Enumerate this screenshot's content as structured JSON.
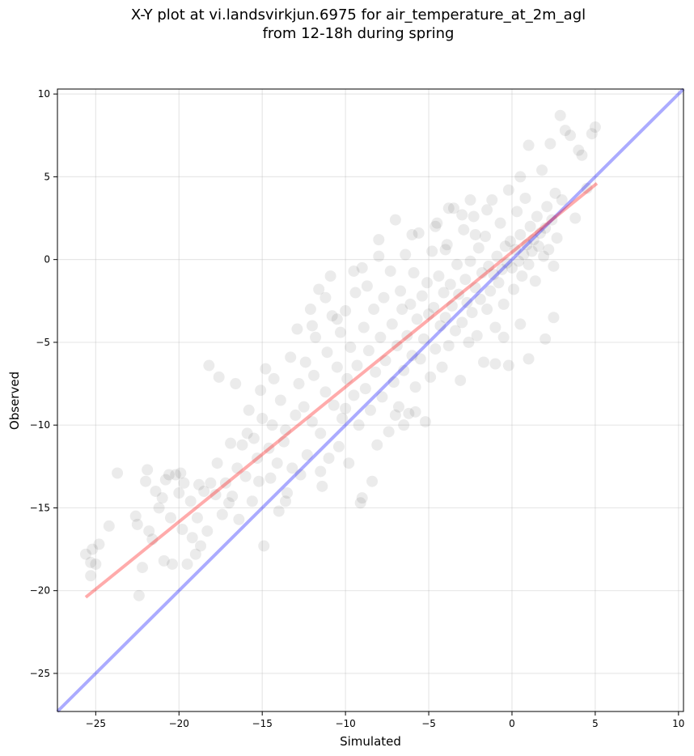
{
  "chart_data": {
    "type": "scatter",
    "title_line1": "X-Y plot at vi.landsvirkjun.6975 for air_temperature_at_2m_agl",
    "title_line2": "from 12-18h during spring",
    "xlabel": "Simulated",
    "ylabel": "Observed",
    "xlim": [
      -27.3,
      10.3
    ],
    "ylim": [
      -27.3,
      10.3
    ],
    "xticks": [
      -25,
      -20,
      -15,
      -10,
      -5,
      0,
      5,
      10
    ],
    "yticks": [
      -25,
      -20,
      -15,
      -10,
      -5,
      0,
      5,
      10
    ],
    "grid": true,
    "point_color": "#000000",
    "point_alpha": 0.08,
    "identity_line": {
      "color": "#0000ff",
      "alpha": 0.33,
      "x": [
        -27.3,
        10.3
      ],
      "y": [
        -27.3,
        10.3
      ]
    },
    "fit_line": {
      "color": "#ff0000",
      "alpha": 0.33,
      "x": [
        -25.6,
        5.1
      ],
      "y": [
        -20.4,
        4.6
      ]
    },
    "points": [
      [
        -25.6,
        -17.8
      ],
      [
        -25.3,
        -18.3
      ],
      [
        -25.2,
        -17.5
      ],
      [
        -25.0,
        -18.4
      ],
      [
        -24.8,
        -17.2
      ],
      [
        -25.3,
        -19.1
      ],
      [
        -24.2,
        -16.1
      ],
      [
        -23.7,
        -12.9
      ],
      [
        -22.6,
        -15.5
      ],
      [
        -22.4,
        -20.3
      ],
      [
        -22.5,
        -16.0
      ],
      [
        -22.2,
        -18.6
      ],
      [
        -22.0,
        -13.4
      ],
      [
        -21.9,
        -12.7
      ],
      [
        -21.8,
        -16.4
      ],
      [
        -21.6,
        -16.9
      ],
      [
        -21.4,
        -14.0
      ],
      [
        -21.2,
        -15.0
      ],
      [
        -21.0,
        -14.4
      ],
      [
        -20.9,
        -18.2
      ],
      [
        -20.8,
        -13.3
      ],
      [
        -20.6,
        -13.0
      ],
      [
        -20.5,
        -15.6
      ],
      [
        -20.4,
        -18.4
      ],
      [
        -20.2,
        -13.0
      ],
      [
        -20.0,
        -14.1
      ],
      [
        -19.9,
        -12.9
      ],
      [
        -19.8,
        -16.3
      ],
      [
        -19.7,
        -13.5
      ],
      [
        -19.5,
        -18.4
      ],
      [
        -19.3,
        -14.6
      ],
      [
        -19.2,
        -16.8
      ],
      [
        -19.0,
        -17.8
      ],
      [
        -18.9,
        -15.6
      ],
      [
        -18.8,
        -13.6
      ],
      [
        -18.7,
        -17.3
      ],
      [
        -18.5,
        -14.0
      ],
      [
        -18.3,
        -16.4
      ],
      [
        -18.1,
        -13.5
      ],
      [
        -18.2,
        -6.4
      ],
      [
        -17.8,
        -14.2
      ],
      [
        -17.7,
        -12.3
      ],
      [
        -17.6,
        -7.1
      ],
      [
        -17.4,
        -15.4
      ],
      [
        -17.2,
        -13.5
      ],
      [
        -17.0,
        -14.7
      ],
      [
        -16.9,
        -11.1
      ],
      [
        -16.8,
        -14.3
      ],
      [
        -16.6,
        -7.5
      ],
      [
        -16.5,
        -12.6
      ],
      [
        -16.4,
        -15.7
      ],
      [
        -16.2,
        -11.2
      ],
      [
        -16.0,
        -13.1
      ],
      [
        -15.9,
        -10.5
      ],
      [
        -15.8,
        -9.1
      ],
      [
        -15.6,
        -14.6
      ],
      [
        -15.5,
        -10.8
      ],
      [
        -15.3,
        -12.0
      ],
      [
        -15.2,
        -13.4
      ],
      [
        -15.1,
        -7.9
      ],
      [
        -15.0,
        -9.6
      ],
      [
        -14.9,
        -17.3
      ],
      [
        -14.8,
        -6.6
      ],
      [
        -14.6,
        -11.4
      ],
      [
        -14.5,
        -13.2
      ],
      [
        -14.4,
        -10.0
      ],
      [
        -14.3,
        -7.2
      ],
      [
        -14.1,
        -12.3
      ],
      [
        -14.0,
        -15.2
      ],
      [
        -13.9,
        -8.5
      ],
      [
        -13.7,
        -11.0
      ],
      [
        -13.6,
        -10.3
      ],
      [
        -13.5,
        -14.1
      ],
      [
        -13.3,
        -5.9
      ],
      [
        -13.2,
        -12.6
      ],
      [
        -13.0,
        -9.4
      ],
      [
        -12.9,
        -4.2
      ],
      [
        -12.8,
        -7.5
      ],
      [
        -12.7,
        -13.0
      ],
      [
        -12.5,
        -8.9
      ],
      [
        -12.4,
        -6.2
      ],
      [
        -12.3,
        -11.8
      ],
      [
        -12.1,
        -3.0
      ],
      [
        -12.0,
        -9.8
      ],
      [
        -11.9,
        -7.0
      ],
      [
        -11.8,
        -4.7
      ],
      [
        -11.6,
        -1.8
      ],
      [
        -11.5,
        -10.5
      ],
      [
        -11.4,
        -13.7
      ],
      [
        -11.2,
        -8.0
      ],
      [
        -11.1,
        -5.6
      ],
      [
        -11.0,
        -12.0
      ],
      [
        -10.9,
        -1.0
      ],
      [
        -10.8,
        -3.4
      ],
      [
        -10.7,
        -8.8
      ],
      [
        -10.5,
        -6.5
      ],
      [
        -10.4,
        -11.3
      ],
      [
        -10.3,
        -4.4
      ],
      [
        -10.2,
        -9.6
      ],
      [
        -10.0,
        -3.1
      ],
      [
        -9.9,
        -7.2
      ],
      [
        -9.8,
        -12.3
      ],
      [
        -9.7,
        -5.3
      ],
      [
        -9.5,
        -8.2
      ],
      [
        -9.4,
        -2.0
      ],
      [
        -9.3,
        -6.4
      ],
      [
        -9.2,
        -10.0
      ],
      [
        -9.0,
        -14.4
      ],
      [
        -9.0,
        -0.5
      ],
      [
        -8.9,
        -4.1
      ],
      [
        -8.8,
        -7.8
      ],
      [
        -8.7,
        -1.6
      ],
      [
        -8.6,
        -5.5
      ],
      [
        -8.5,
        -9.1
      ],
      [
        -8.3,
        -3.0
      ],
      [
        -8.2,
        -6.8
      ],
      [
        -8.1,
        -11.2
      ],
      [
        -8.0,
        1.2
      ],
      [
        -7.9,
        -4.7
      ],
      [
        -7.8,
        -8.3
      ],
      [
        -7.7,
        -2.3
      ],
      [
        -7.6,
        -6.1
      ],
      [
        -7.4,
        -10.4
      ],
      [
        -7.3,
        -0.7
      ],
      [
        -7.2,
        -3.9
      ],
      [
        -7.1,
        -7.4
      ],
      [
        -7.0,
        2.4
      ],
      [
        -6.9,
        -5.2
      ],
      [
        -6.8,
        -8.9
      ],
      [
        -6.7,
        -1.9
      ],
      [
        -6.6,
        -3.0
      ],
      [
        -6.5,
        -6.7
      ],
      [
        -6.4,
        0.3
      ],
      [
        -6.3,
        -4.6
      ],
      [
        -6.2,
        -9.3
      ],
      [
        -6.1,
        -2.7
      ],
      [
        -6.0,
        -5.8
      ],
      [
        -5.9,
        -0.8
      ],
      [
        -5.8,
        -7.7
      ],
      [
        -5.7,
        -3.6
      ],
      [
        -5.6,
        1.6
      ],
      [
        -5.5,
        -6.0
      ],
      [
        -5.4,
        -2.2
      ],
      [
        -5.3,
        -4.8
      ],
      [
        -5.2,
        -9.8
      ],
      [
        -5.1,
        -1.4
      ],
      [
        -5.0,
        -3.3
      ],
      [
        -4.9,
        -7.1
      ],
      [
        -4.8,
        0.5
      ],
      [
        -4.7,
        -2.9
      ],
      [
        -4.6,
        -5.4
      ],
      [
        -4.5,
        2.2
      ],
      [
        -4.4,
        -1.0
      ],
      [
        -4.3,
        -4.0
      ],
      [
        -4.2,
        -6.5
      ],
      [
        -4.1,
        -2.0
      ],
      [
        -4.0,
        -3.5
      ],
      [
        -3.9,
        0.9
      ],
      [
        -3.8,
        -5.2
      ],
      [
        -3.7,
        -1.5
      ],
      [
        -3.6,
        -2.8
      ],
      [
        -3.5,
        3.1
      ],
      [
        -3.4,
        -4.3
      ],
      [
        -3.3,
        -0.3
      ],
      [
        -3.2,
        -2.1
      ],
      [
        -3.1,
        -7.3
      ],
      [
        -3.0,
        -3.8
      ],
      [
        -2.9,
        1.8
      ],
      [
        -2.8,
        -1.2
      ],
      [
        -2.7,
        -2.6
      ],
      [
        -2.6,
        -5.0
      ],
      [
        -2.5,
        -0.1
      ],
      [
        -2.4,
        -3.2
      ],
      [
        -2.3,
        2.6
      ],
      [
        -2.2,
        -1.7
      ],
      [
        -2.1,
        -4.6
      ],
      [
        -2.0,
        0.7
      ],
      [
        -1.9,
        -2.4
      ],
      [
        -1.8,
        -0.8
      ],
      [
        -1.7,
        -6.2
      ],
      [
        -1.6,
        1.4
      ],
      [
        -1.5,
        -3.0
      ],
      [
        -1.4,
        -0.4
      ],
      [
        -1.3,
        -1.9
      ],
      [
        -1.2,
        3.6
      ],
      [
        -1.1,
        -0.9
      ],
      [
        -1.0,
        -4.1
      ],
      [
        -0.9,
        0.2
      ],
      [
        -0.8,
        -1.4
      ],
      [
        -0.7,
        2.2
      ],
      [
        -0.6,
        -0.6
      ],
      [
        -0.5,
        -2.7
      ],
      [
        -0.4,
        0.8
      ],
      [
        -0.3,
        -0.2
      ],
      [
        -0.2,
        -6.4
      ],
      [
        -0.1,
        1.1
      ],
      [
        0.0,
        -0.5
      ],
      [
        0.1,
        -1.8
      ],
      [
        0.2,
        0.6
      ],
      [
        0.3,
        2.9
      ],
      [
        0.4,
        -0.1
      ],
      [
        0.5,
        1.5
      ],
      [
        0.6,
        -1.0
      ],
      [
        0.7,
        0.3
      ],
      [
        0.8,
        3.7
      ],
      [
        0.9,
        0.9
      ],
      [
        1.0,
        -0.3
      ],
      [
        1.1,
        2.0
      ],
      [
        1.2,
        0.5
      ],
      [
        1.3,
        1.2
      ],
      [
        1.4,
        -1.3
      ],
      [
        1.5,
        2.6
      ],
      [
        1.6,
        0.8
      ],
      [
        1.7,
        1.6
      ],
      [
        1.8,
        5.4
      ],
      [
        1.9,
        0.2
      ],
      [
        2.0,
        1.9
      ],
      [
        2.1,
        3.2
      ],
      [
        2.2,
        0.6
      ],
      [
        2.3,
        7.0
      ],
      [
        2.4,
        2.4
      ],
      [
        2.5,
        -0.4
      ],
      [
        2.6,
        4.0
      ],
      [
        2.7,
        1.3
      ],
      [
        2.9,
        8.7
      ],
      [
        3.0,
        3.6
      ],
      [
        3.2,
        7.8
      ],
      [
        3.5,
        7.5
      ],
      [
        3.8,
        2.5
      ],
      [
        4.0,
        6.6
      ],
      [
        4.2,
        6.3
      ],
      [
        4.5,
        4.3
      ],
      [
        4.8,
        7.6
      ],
      [
        5.0,
        8.0
      ],
      [
        -0.5,
        -4.7
      ],
      [
        2.0,
        -4.8
      ],
      [
        2.5,
        -3.5
      ],
      [
        1.0,
        -6.0
      ],
      [
        -1.0,
        -6.3
      ],
      [
        0.5,
        -3.9
      ],
      [
        -3.0,
        2.7
      ],
      [
        -4.6,
        2.0
      ],
      [
        -6.0,
        1.5
      ],
      [
        -8.0,
        0.2
      ],
      [
        -9.5,
        -0.7
      ],
      [
        -10.5,
        -3.6
      ],
      [
        -11.2,
        -2.3
      ],
      [
        -12.0,
        -4.0
      ],
      [
        -6.5,
        -10.0
      ],
      [
        -5.8,
        -9.2
      ],
      [
        -7.0,
        -9.4
      ],
      [
        -9.1,
        -14.7
      ],
      [
        -11.5,
        -12.8
      ],
      [
        -13.6,
        -14.6
      ],
      [
        -8.4,
        -13.4
      ],
      [
        -10.0,
        -9.0
      ],
      [
        -4.0,
        0.6
      ],
      [
        -2.2,
        1.5
      ],
      [
        0.5,
        5.0
      ],
      [
        1.0,
        6.9
      ],
      [
        -0.2,
        4.2
      ],
      [
        -1.5,
        3.0
      ],
      [
        -2.5,
        3.6
      ],
      [
        -3.8,
        3.1
      ]
    ]
  }
}
